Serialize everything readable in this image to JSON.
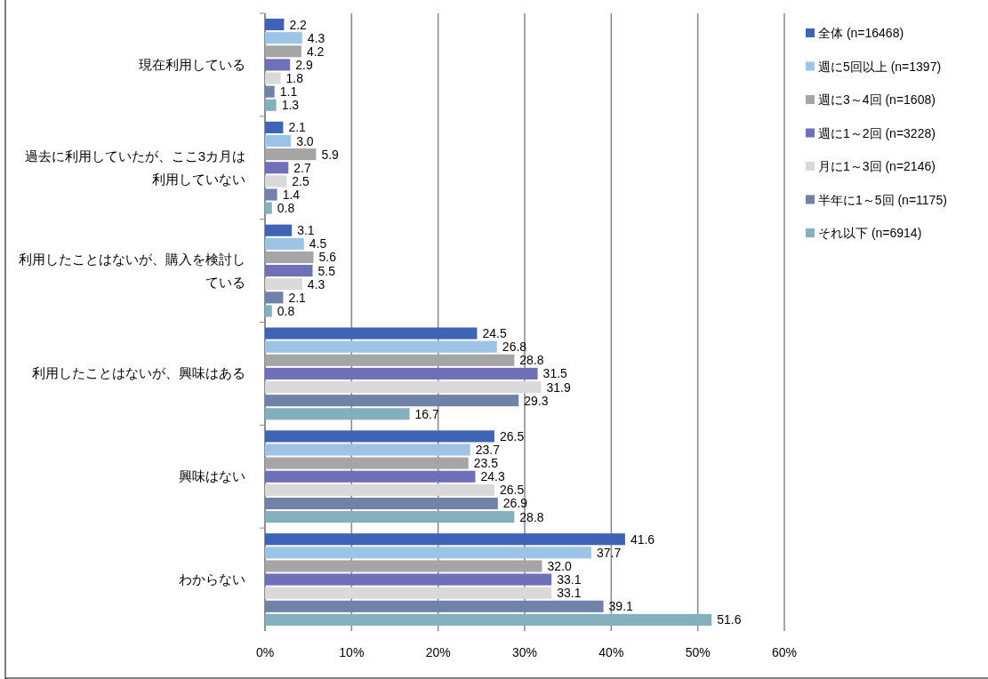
{
  "chart_data": {
    "type": "bar",
    "orientation": "horizontal",
    "categories": [
      "現在利用している",
      "過去に利用していたが、ここ3カ月は利用していない",
      "利用したことはないが、購入を検討している",
      "利用したことはないが、興味はある",
      "興味はない",
      "わからない"
    ],
    "xlim": [
      0,
      60
    ],
    "xticks": [
      {
        "value": 0,
        "label": "0%"
      },
      {
        "value": 10,
        "label": "10%"
      },
      {
        "value": 20,
        "label": "20%"
      },
      {
        "value": 30,
        "label": "30%"
      },
      {
        "value": 40,
        "label": "40%"
      },
      {
        "value": 50,
        "label": "50%"
      },
      {
        "value": 60,
        "label": "60%"
      }
    ],
    "grid": "x",
    "legend": "right",
    "series": [
      {
        "name": "全体 (n=16468)",
        "color": "#3f63b5",
        "values": [
          2.2,
          2.1,
          3.1,
          24.5,
          26.5,
          41.6
        ],
        "value_labels": [
          "2.2",
          "2.1",
          "3.1",
          "24.5",
          "26.5",
          "41.6"
        ]
      },
      {
        "name": "週に5回以上 (n=1397)",
        "color": "#9dc3e6",
        "values": [
          4.3,
          3.0,
          4.5,
          26.8,
          23.7,
          37.7
        ],
        "value_labels": [
          "4.3",
          "3.0",
          "4.5",
          "26.8",
          "23.7",
          "37.7"
        ]
      },
      {
        "name": "週に3～4回 (n=1608)",
        "color": "#a5a5a5",
        "values": [
          4.2,
          5.9,
          5.6,
          28.8,
          23.5,
          32.0
        ],
        "value_labels": [
          "4.2",
          "5.9",
          "5.6",
          "28.8",
          "23.5",
          "32.0"
        ]
      },
      {
        "name": "週に1～2回 (n=3228)",
        "color": "#7070b8",
        "values": [
          2.9,
          2.7,
          5.5,
          31.5,
          24.3,
          33.1
        ],
        "value_labels": [
          "2.9",
          "2.7",
          "5.5",
          "31.5",
          "24.3",
          "33.1"
        ]
      },
      {
        "name": "月に1～3回 (n=2146)",
        "color": "#d9d9d9",
        "values": [
          1.8,
          2.5,
          4.3,
          31.9,
          26.5,
          33.1
        ],
        "value_labels": [
          "1.8",
          "2.5",
          "4.3",
          "31.9",
          "26.5",
          "33.1"
        ]
      },
      {
        "name": "半年に1～5回 (n=1175)",
        "color": "#7082a8",
        "values": [
          1.1,
          1.4,
          2.1,
          29.3,
          26.9,
          39.1
        ],
        "value_labels": [
          "1.1",
          "1.4",
          "2.1",
          "29.3",
          "26.9",
          "39.1"
        ]
      },
      {
        "name": "それ以下 (n=6914)",
        "color": "#84afbd",
        "values": [
          1.3,
          0.8,
          0.8,
          16.7,
          28.8,
          51.6
        ],
        "value_labels": [
          "1.3",
          "0.8",
          "0.8",
          "16.7",
          "28.8",
          "51.6"
        ]
      }
    ]
  }
}
